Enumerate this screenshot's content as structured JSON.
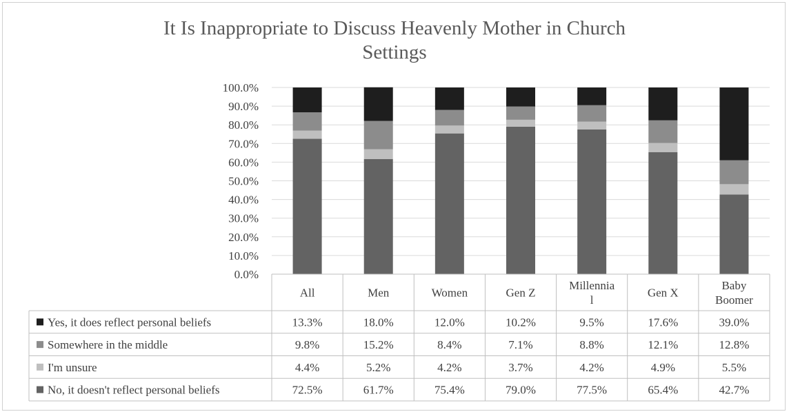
{
  "chart_data": {
    "type": "bar",
    "stacked": true,
    "title_lines": [
      "It Is Inappropriate to Discuss Heavenly Mother in Church",
      "Settings"
    ],
    "categories": [
      "All",
      "Men",
      "Women",
      "Gen Z",
      "Millennial",
      "Gen X",
      "Baby Boomer"
    ],
    "category_label_lines": [
      [
        "All"
      ],
      [
        "Men"
      ],
      [
        "Women"
      ],
      [
        "Gen Z"
      ],
      [
        "Millennia",
        "l"
      ],
      [
        "Gen X"
      ],
      [
        "Baby",
        "Boomer"
      ]
    ],
    "y_ticks": [
      "0.0%",
      "10.0%",
      "20.0%",
      "30.0%",
      "40.0%",
      "50.0%",
      "60.0%",
      "70.0%",
      "80.0%",
      "90.0%",
      "100.0%"
    ],
    "ylim": [
      0,
      100
    ],
    "grid": true,
    "legend": "data-table",
    "series": [
      {
        "name": "No, it doesn't reflect personal beliefs",
        "color": "#636363",
        "values": [
          72.5,
          61.7,
          75.4,
          79.0,
          77.5,
          65.4,
          42.7
        ],
        "labels": [
          "72.5%",
          "61.7%",
          "75.4%",
          "79.0%",
          "77.5%",
          "65.4%",
          "42.7%"
        ]
      },
      {
        "name": "I'm unsure",
        "color": "#bfbfbf",
        "values": [
          4.4,
          5.2,
          4.2,
          3.7,
          4.2,
          4.9,
          5.5
        ],
        "labels": [
          "4.4%",
          "5.2%",
          "4.2%",
          "3.7%",
          "4.2%",
          "4.9%",
          "5.5%"
        ]
      },
      {
        "name": "Somewhere in the middle",
        "color": "#8c8c8c",
        "values": [
          9.8,
          15.2,
          8.4,
          7.1,
          8.8,
          12.1,
          12.8
        ],
        "labels": [
          "9.8%",
          "15.2%",
          "8.4%",
          "7.1%",
          "8.8%",
          "12.1%",
          "12.8%"
        ]
      },
      {
        "name": "Yes, it does reflect personal beliefs",
        "color": "#1e1e1e",
        "values": [
          13.3,
          18.0,
          12.0,
          10.2,
          9.5,
          17.6,
          39.0
        ],
        "labels": [
          "13.3%",
          "18.0%",
          "12.0%",
          "10.2%",
          "9.5%",
          "17.6%",
          "39.0%"
        ]
      }
    ],
    "table_row_order": [
      3,
      2,
      1,
      0
    ]
  }
}
